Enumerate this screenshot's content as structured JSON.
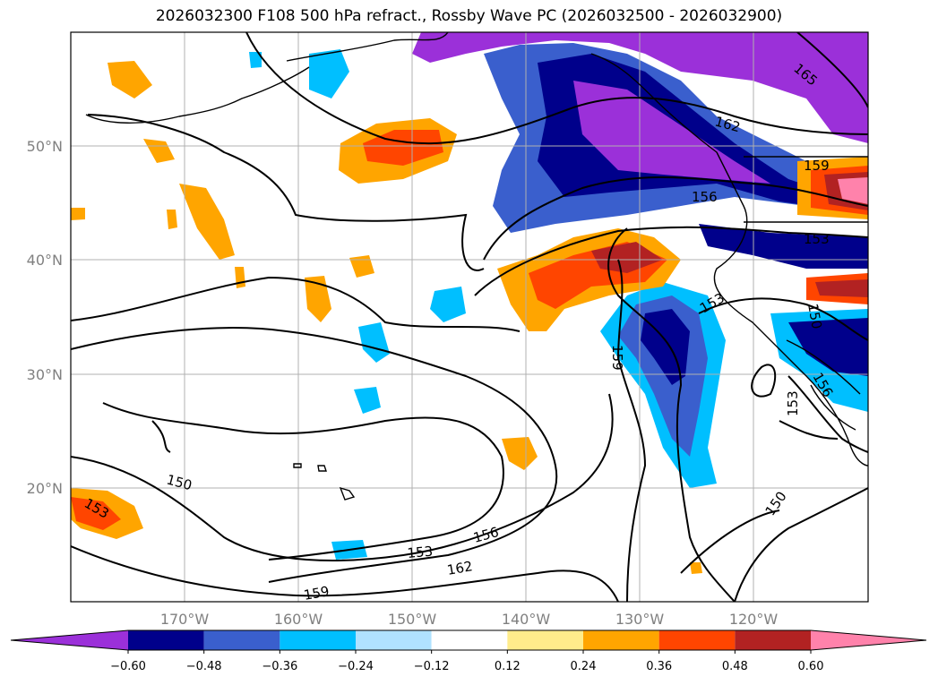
{
  "title": "2026032300 F108 500 hPa refract., Rossby Wave PC (2026032500 - 2026032900)",
  "map": {
    "lon_labels": [
      "170°W",
      "160°W",
      "150°W",
      "140°W",
      "130°W",
      "120°W"
    ],
    "lat_labels": [
      "50°N",
      "40°N",
      "30°N",
      "20°N"
    ],
    "contour_labels": [
      "165",
      "162",
      "159",
      "156",
      "153",
      "153",
      "150",
      "159",
      "153",
      "150",
      "153",
      "156",
      "162",
      "150",
      "156",
      "153",
      "159"
    ]
  },
  "colorbar": {
    "ticks": [
      "−0.60",
      "−0.48",
      "−0.36",
      "−0.24",
      "−0.12",
      "0.12",
      "0.24",
      "0.36",
      "0.48",
      "0.60"
    ],
    "colors": [
      "#9b30d9",
      "#00008b",
      "#3a5fcd",
      "#00bfff",
      "#b0e2ff",
      "#ffffff",
      "#ffec8b",
      "#ffa500",
      "#ff4500",
      "#b22222",
      "#ff82ab"
    ]
  }
}
